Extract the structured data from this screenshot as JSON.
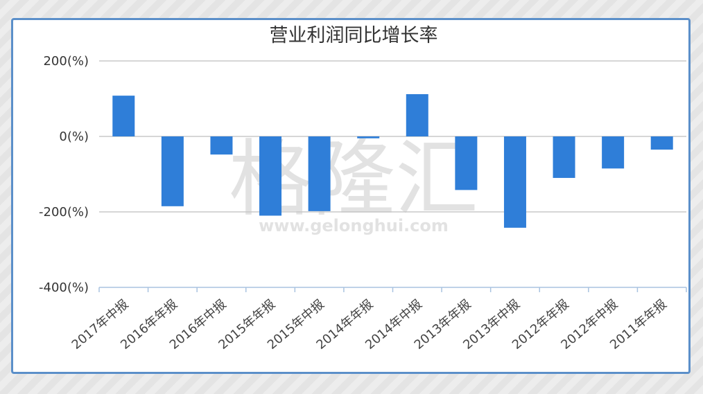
{
  "chart_data": {
    "type": "bar",
    "title": "营业利润同比增长率",
    "xlabel": "",
    "ylabel": "",
    "categories": [
      "2017年中报",
      "2016年年报",
      "2016年中报",
      "2015年年报",
      "2015年中报",
      "2014年年报",
      "2014年中报",
      "2013年年报",
      "2013年中报",
      "2012年年报",
      "2012年中报",
      "2011年年报"
    ],
    "values": [
      108,
      -185,
      -48,
      -210,
      -198,
      -5,
      112,
      -142,
      -242,
      -110,
      -85,
      -35
    ],
    "yticks": [
      200,
      0,
      -200,
      -400
    ],
    "ytick_labels": [
      "200(%)",
      "0(%)",
      "-200(%)",
      "-400(%)"
    ],
    "ylim": [
      -400,
      200
    ],
    "grid": true,
    "bar_color": "#2f7ed8"
  },
  "watermark": {
    "text": "格隆汇",
    "url": "www.gelonghui.com"
  }
}
